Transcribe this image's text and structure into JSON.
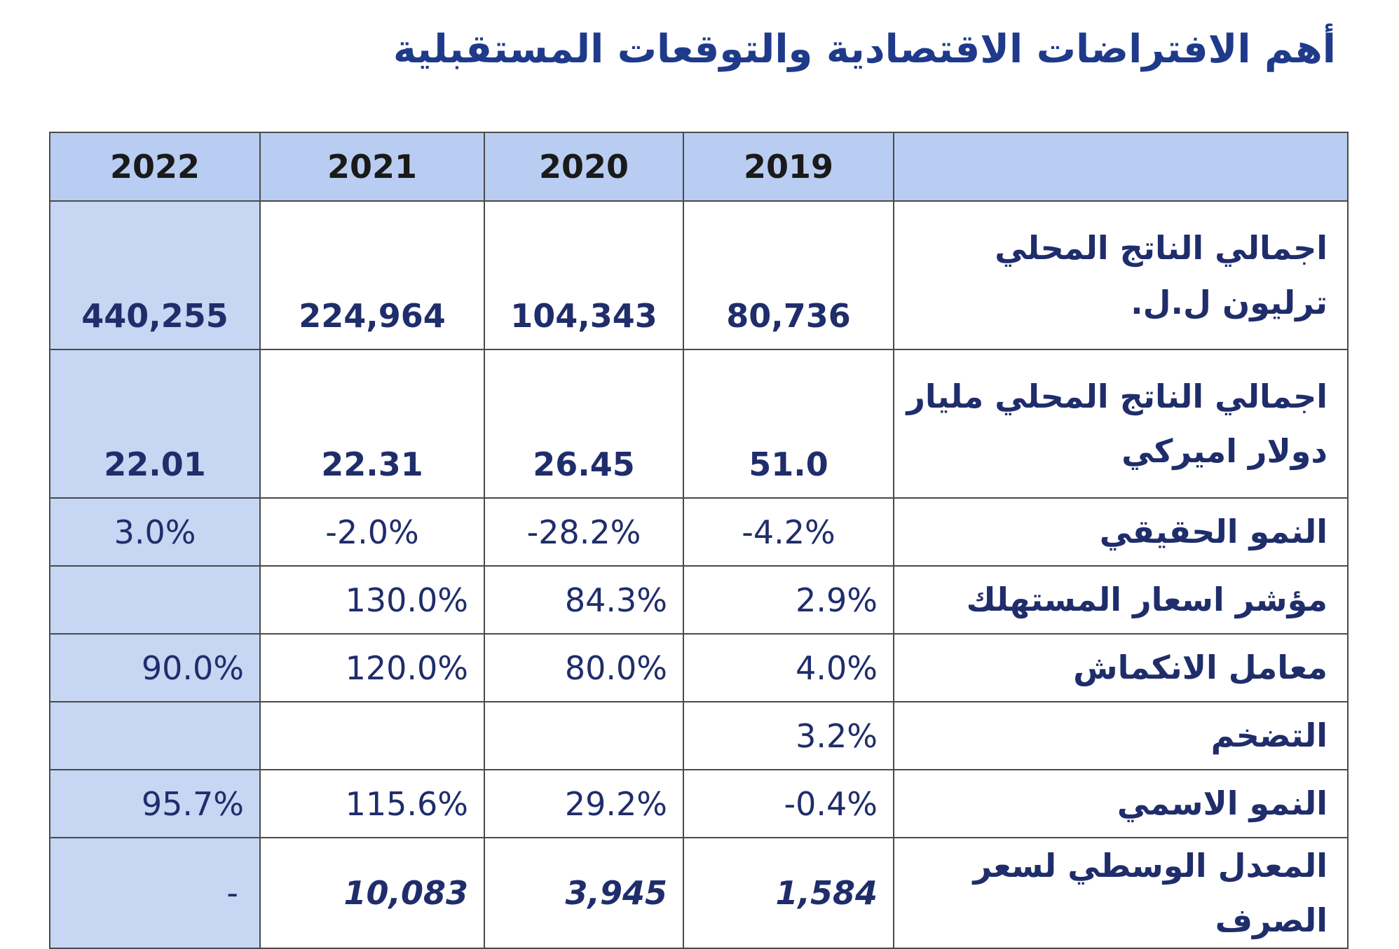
{
  "title": "أهم الافتراضات الاقتصادية والتوقعات المستقبلية",
  "table": {
    "headers": [
      "2022",
      "2021",
      "2020",
      "2019",
      ""
    ],
    "rows": [
      {
        "label": "اجمالي الناتج المحلي  ترليون ل.ل.",
        "values": [
          "440,255",
          "224,964",
          "104,343",
          "80,736"
        ]
      },
      {
        "label": "اجمالي الناتج المحلي  مليار دولار اميركي",
        "values": [
          "22.01",
          "22.31",
          "26.45",
          "51.0"
        ]
      },
      {
        "label": "النمو الحقيقي",
        "values": [
          "3.0%",
          "-2.0%",
          "-28.2%",
          "-4.2%"
        ]
      },
      {
        "label": "مؤشر اسعار المستهلك",
        "values": [
          "",
          "130.0%",
          "84.3%",
          "2.9%"
        ]
      },
      {
        "label": "معامل الانكماش",
        "values": [
          "90.0%",
          "120.0%",
          "80.0%",
          "4.0%"
        ]
      },
      {
        "label": "التضخم",
        "values": [
          "",
          "",
          "",
          "3.2%"
        ]
      },
      {
        "label": "النمو الاسمي",
        "values": [
          "95.7%",
          "115.6%",
          "29.2%",
          "-0.4%"
        ]
      },
      {
        "label": "المعدل الوسطي لسعر الصرف",
        "values": [
          "-",
          "10,083",
          "3,945",
          "1,584"
        ]
      }
    ]
  }
}
